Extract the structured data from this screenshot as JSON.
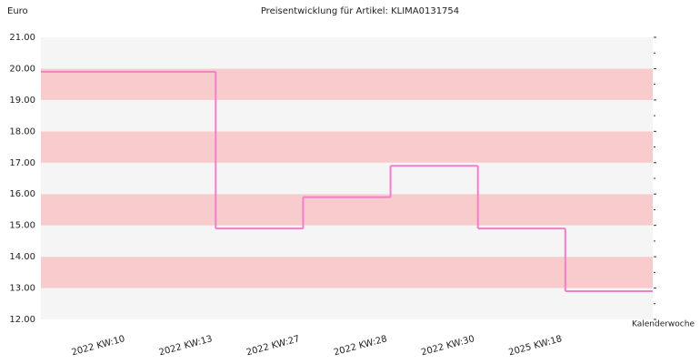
{
  "chart_data": {
    "type": "step",
    "title": "Preisentwicklung für Artikel: KLIMA0131754",
    "y_label": "Euro",
    "x_label": "Kalenderwoche",
    "categories": [
      "2022 KW:10",
      "2022 KW:13",
      "2022 KW:27",
      "2022 KW:28",
      "2022 KW:30",
      "2025 KW:18"
    ],
    "series": [
      {
        "color": "#f080c8",
        "values": [
          19.9,
          14.9,
          15.9,
          16.9,
          14.9,
          12.9
        ]
      }
    ],
    "ylim": [
      12,
      21
    ],
    "yticks": [
      {
        "value": 12,
        "label": "12.00"
      },
      {
        "value": 13,
        "label": "13.00"
      },
      {
        "value": 14,
        "label": "14.00"
      },
      {
        "value": 15,
        "label": "15.00"
      },
      {
        "value": 16,
        "label": "16.00"
      },
      {
        "value": 17,
        "label": "17.00"
      },
      {
        "value": 18,
        "label": "18.00"
      },
      {
        "value": 19,
        "label": "19.00"
      },
      {
        "value": 20,
        "label": "20.00"
      },
      {
        "value": 21,
        "label": "21.00"
      }
    ],
    "band_colors": [
      "#f5f5f5",
      "#f8cccc"
    ]
  }
}
